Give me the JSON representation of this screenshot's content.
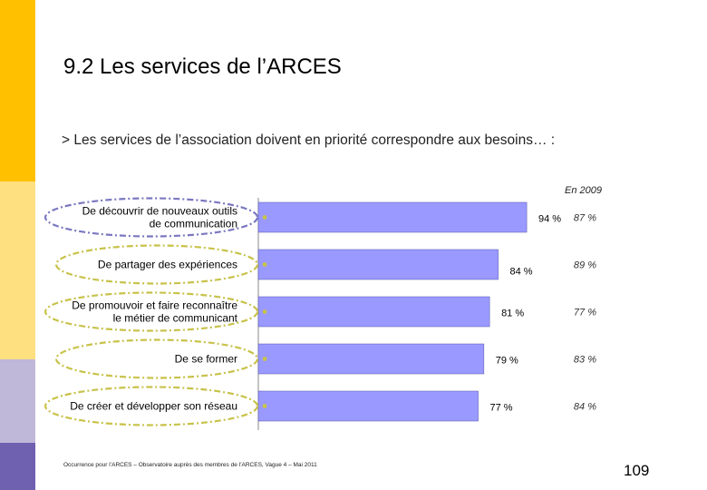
{
  "slide": {
    "title": "9.2 Les services de l’ARCES",
    "subtitle": "> Les services de l’association doivent en priorité correspondre aux besoins… :",
    "comparison_label": "En 2009",
    "footnote": "Occurrence pour l’ARCES – Observatoire auprès des membres de l’ARCES, Vague 4 – Mai 2011",
    "page_number": "109",
    "colors": {
      "bar": "#9999ff",
      "bar_edge": "#5555aa",
      "oval": "#c8c24a",
      "oval_highlight": "#7a78c0",
      "stripe_top": "#ffc000",
      "stripe_mid": "#ffe080",
      "stripe_low": "#c0b8d8",
      "stripe_bottom": "#7060b0"
    }
  },
  "chart_data": {
    "type": "bar",
    "orientation": "horizontal",
    "categories": [
      [
        "De découvrir de nouveaux outils",
        "de communication"
      ],
      [
        "De partager des expériences"
      ],
      [
        "De promouvoir et faire reconnaître",
        "le métier de communicant"
      ],
      [
        "De se former"
      ],
      [
        "De créer et développer son réseau"
      ]
    ],
    "highlighted": [
      true,
      false,
      false,
      false,
      false
    ],
    "values": [
      94,
      84,
      81,
      79,
      77
    ],
    "value_labels": [
      "94 %",
      "84 %",
      "81 %",
      "79 %",
      "77 %"
    ],
    "comparison_values": [
      87,
      89,
      77,
      83,
      84
    ],
    "comparison_labels": [
      "87 %",
      "89 %",
      "77 %",
      "83 %",
      "84 %"
    ],
    "xlim": [
      0,
      100
    ],
    "grid": false,
    "legend": "none"
  }
}
